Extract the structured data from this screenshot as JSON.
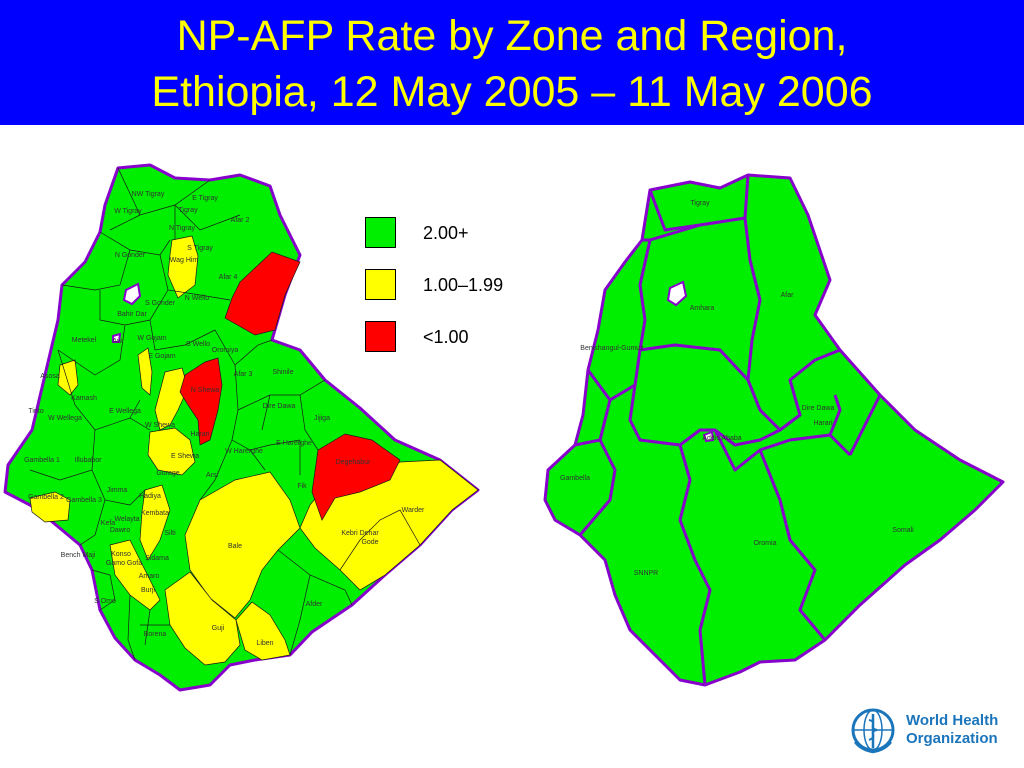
{
  "title": {
    "line1": "NP-AFP Rate by Zone and Region,",
    "line2": "Ethiopia, 12 May 2005 – 11 May 2006"
  },
  "colors": {
    "title_bg": "#0000FF",
    "title_text": "#FFFF00",
    "good": "#00EE00",
    "mid": "#FFFF00",
    "low": "#FF0000",
    "border": "#8800CC"
  },
  "legend": [
    {
      "label": "2.00+",
      "color": "#00EE00"
    },
    {
      "label": "1.00–1.99",
      "color": "#FFFF00"
    },
    {
      "label": "<1.00",
      "color": "#FF0000"
    }
  ],
  "zone_map": {
    "labels": [
      "NW Tigray",
      "E Tigray",
      "W Tigray",
      "Tigray",
      "Afar 2",
      "N Tigray",
      "S Tigray",
      "N Gonder",
      "Wag Him",
      "Afar 4",
      "S Gonder",
      "N Wello",
      "Bahir Dar",
      "Metekel",
      "Awi",
      "W Gojam",
      "E Gojam",
      "S Wello",
      "Oromiya",
      "Afar 3",
      "Shinile",
      "Asosa",
      "Kamash",
      "N Shewa",
      "E Wellega",
      "W Wellega",
      "Dire Dawa",
      "Jijiga",
      "W Shewa",
      "Harari",
      "E Harerghe",
      "Tinto",
      "Gambella 1",
      "Illubabor",
      "Gambella 2",
      "Jimma",
      "Gambella 3",
      "Hadiya",
      "Gurage",
      "E Shewa",
      "W Harerghe",
      "Degehabur",
      "Arsi",
      "Fik",
      "Warder",
      "Kembata",
      "Welayta",
      "Silti",
      "Sidama",
      "Dawro",
      "Kefa",
      "Bench Maji",
      "Konso",
      "Gamo Gofa",
      "Bale",
      "Kebri Dehar",
      "Gode",
      "Amaro",
      "Burji",
      "S Omo",
      "Afder",
      "Guji",
      "Borena",
      "Liben"
    ],
    "rates": {
      "2.00+": "majority of zones",
      "1.00–1.99": [
        "Wag Him",
        "N Gonder (part)",
        "E Gojam (part)",
        "W Shewa (part)",
        "Gurage",
        "Bale",
        "Guji",
        "Liben",
        "Gode",
        "Kebri Dehar",
        "Warder",
        "Gambella 2",
        "Kamash",
        "Konso",
        "Amaro"
      ],
      "<1.00": [
        "Afar 4",
        "N Shewa",
        "Oromiya",
        "Degehabur"
      ]
    }
  },
  "region_map": {
    "labels": [
      "Tigray",
      "Amhara",
      "Afar",
      "Benishangul-Gumuz",
      "Addis Ababa",
      "Dire Dawa",
      "Harari",
      "Gambella",
      "Oromia",
      "SNNPR",
      "Somali"
    ],
    "all_regions_rate": "2.00+"
  },
  "who": {
    "line1": "World Health",
    "line2": "Organization",
    "emblem": "who-emblem-icon"
  }
}
